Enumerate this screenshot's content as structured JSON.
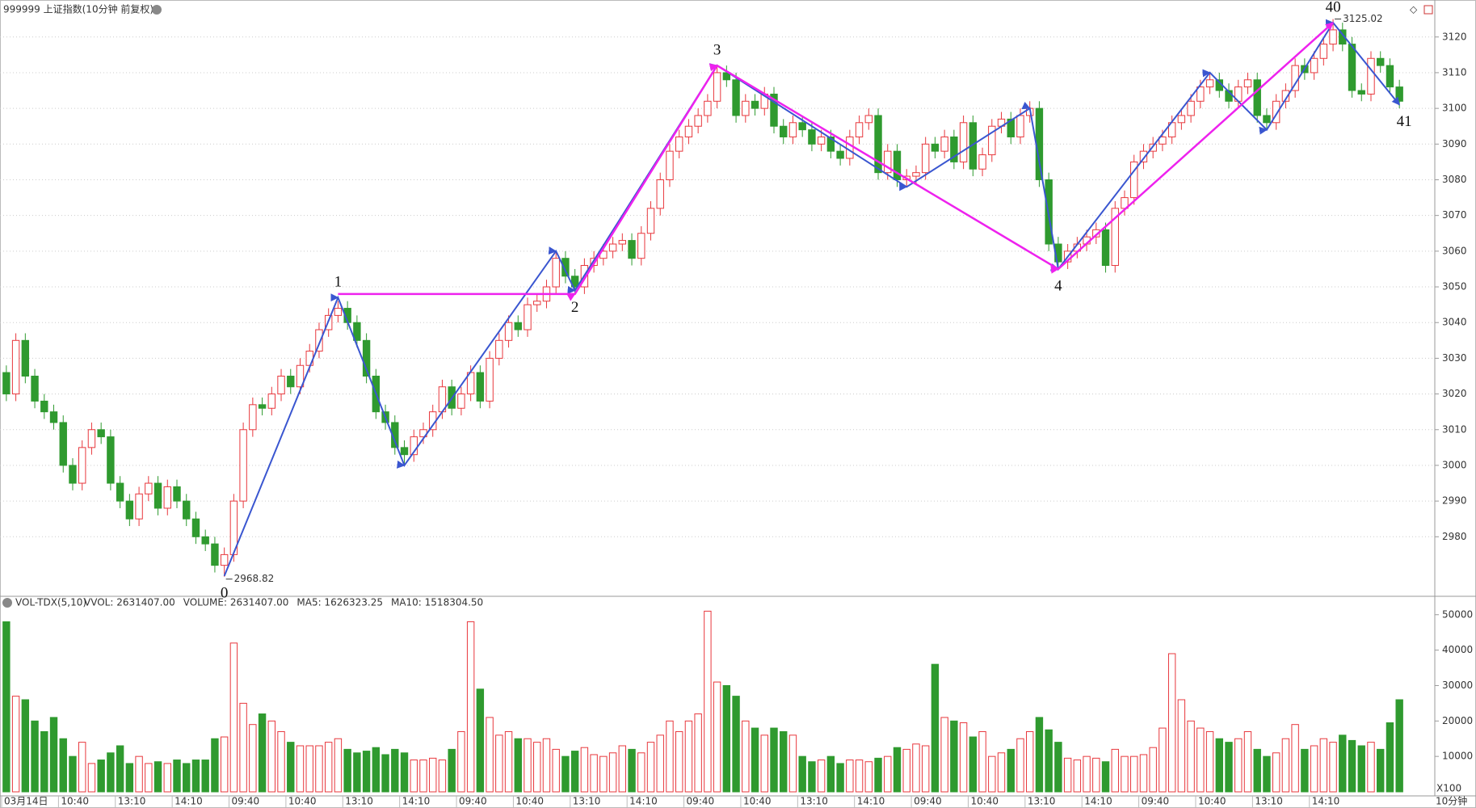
{
  "chart_data": [
    {
      "type": "candlestick",
      "title": "999999 上证指数(10分钟 前复权)",
      "x_unit": "10分钟",
      "up_color": "#e8383d",
      "down_color": "#2f9a2f",
      "categories": [
        "03月14日",
        null,
        null,
        null,
        null,
        null,
        "10:40",
        null,
        null,
        null,
        null,
        null,
        "13:10",
        null,
        null,
        null,
        null,
        null,
        "14:10",
        null,
        null,
        null,
        null,
        null,
        "09:40",
        null,
        null,
        null,
        null,
        null,
        "10:40",
        null,
        null,
        null,
        null,
        null,
        "13:10",
        null,
        null,
        null,
        null,
        null,
        "14:10",
        null,
        null,
        null,
        null,
        null,
        "09:40",
        null,
        null,
        null,
        null,
        null,
        "10:40",
        null,
        null,
        null,
        null,
        null,
        "13:10",
        null,
        null,
        null,
        null,
        null,
        "14:10",
        null,
        null,
        null,
        null,
        null,
        "09:40",
        null,
        null,
        null,
        null,
        null,
        "10:40",
        null,
        null,
        null,
        null,
        null,
        "13:10",
        null,
        null,
        null,
        null,
        null,
        "14:10",
        null,
        null,
        null,
        null,
        null,
        "09:40",
        null,
        null,
        null,
        null,
        null,
        "10:40",
        null,
        null,
        null,
        null,
        null,
        "13:10",
        null,
        null,
        null,
        null,
        null,
        "14:10",
        null,
        null,
        null,
        null,
        null,
        "09:40",
        null,
        null,
        null,
        null,
        null,
        "10:40",
        null,
        null,
        null,
        null,
        null,
        "13:10",
        null,
        null,
        null,
        null,
        null,
        "14:10",
        null,
        null,
        null,
        null,
        null,
        null,
        null,
        null,
        null
      ],
      "open": [
        3026,
        3020,
        3035,
        3025,
        3018,
        3015,
        3012,
        3000,
        2995,
        3005,
        3010,
        3008,
        2995,
        2990,
        2985,
        2992,
        2995,
        2988,
        2994,
        2990,
        2985,
        2980,
        2978,
        2972,
        2975,
        2990,
        3010,
        3017,
        3016,
        3020,
        3025,
        3022,
        3028,
        3032,
        3038,
        3042,
        3044,
        3040,
        3035,
        3025,
        3015,
        3012,
        3005,
        3003,
        3008,
        3010,
        3015,
        3022,
        3016,
        3020,
        3026,
        3018,
        3030,
        3035,
        3040,
        3038,
        3045,
        3046,
        3050,
        3058,
        3053,
        3050,
        3056,
        3058,
        3060,
        3062,
        3063,
        3058,
        3065,
        3072,
        3080,
        3088,
        3092,
        3095,
        3098,
        3102,
        3110,
        3108,
        3098,
        3102,
        3100,
        3104,
        3095,
        3092,
        3096,
        3094,
        3090,
        3092,
        3088,
        3086,
        3092,
        3096,
        3098,
        3082,
        3088,
        3080,
        3081,
        3082,
        3090,
        3088,
        3092,
        3085,
        3096,
        3083,
        3087,
        3095,
        3097,
        3092,
        3098,
        3100,
        3080,
        3062,
        3057,
        3060,
        3062,
        3064,
        3066,
        3056,
        3072,
        3075,
        3085,
        3088,
        3090,
        3092,
        3096,
        3098,
        3102,
        3106,
        3108,
        3105,
        3102,
        3106,
        3108,
        3098,
        3096,
        3102,
        3105,
        3112,
        3110,
        3114,
        3118,
        3122,
        3118,
        3105,
        3104,
        3114,
        3112,
        3106
      ],
      "high": [
        3028,
        3037,
        3037,
        3027,
        3020,
        3017,
        3014,
        3002,
        3007,
        3012,
        3012,
        3010,
        2997,
        2992,
        2994,
        2997,
        2997,
        2996,
        2996,
        2992,
        2987,
        2982,
        2980,
        2977,
        2992,
        3012,
        3019,
        3019,
        3022,
        3027,
        3027,
        3030,
        3034,
        3040,
        3044,
        3046,
        3046,
        3042,
        3037,
        3027,
        3017,
        3014,
        3007,
        3010,
        3012,
        3017,
        3024,
        3024,
        3022,
        3028,
        3028,
        3032,
        3037,
        3042,
        3042,
        3047,
        3048,
        3052,
        3060,
        3060,
        3055,
        3058,
        3060,
        3062,
        3064,
        3065,
        3065,
        3067,
        3074,
        3082,
        3090,
        3094,
        3097,
        3100,
        3104,
        3112,
        3112,
        3110,
        3104,
        3104,
        3106,
        3106,
        3097,
        3098,
        3098,
        3096,
        3094,
        3094,
        3090,
        3094,
        3098,
        3100,
        3100,
        3090,
        3090,
        3083,
        3084,
        3092,
        3092,
        3094,
        3094,
        3098,
        3098,
        3089,
        3097,
        3099,
        3099,
        3100,
        3102,
        3102,
        3082,
        3064,
        3062,
        3064,
        3066,
        3068,
        3068,
        3074,
        3077,
        3087,
        3090,
        3092,
        3094,
        3098,
        3100,
        3104,
        3108,
        3110,
        3110,
        3107,
        3108,
        3110,
        3110,
        3100,
        3104,
        3107,
        3114,
        3114,
        3116,
        3120,
        3125.02,
        3124,
        3120,
        3107,
        3116,
        3116,
        3114,
        3108
      ],
      "low": [
        3018,
        3018,
        3023,
        3016,
        3013,
        3010,
        2998,
        2993,
        2993,
        3003,
        3006,
        2993,
        2988,
        2983,
        2983,
        2990,
        2986,
        2986,
        2988,
        2983,
        2978,
        2976,
        2970,
        2968.82,
        2973,
        2988,
        3008,
        3014,
        3014,
        3018,
        3020,
        3020,
        3026,
        3030,
        3036,
        3040,
        3038,
        3033,
        3023,
        3013,
        3010,
        3003,
        3000,
        3001,
        3006,
        3008,
        3013,
        3014,
        3014,
        3018,
        3016,
        3016,
        3028,
        3033,
        3036,
        3036,
        3043,
        3044,
        3048,
        3051,
        3048,
        3048,
        3054,
        3056,
        3058,
        3060,
        3056,
        3056,
        3063,
        3070,
        3078,
        3086,
        3090,
        3093,
        3096,
        3100,
        3106,
        3096,
        3096,
        3098,
        3098,
        3093,
        3090,
        3090,
        3092,
        3088,
        3088,
        3086,
        3084,
        3084,
        3090,
        3094,
        3080,
        3080,
        3078,
        3078,
        3079,
        3080,
        3086,
        3086,
        3083,
        3083,
        3081,
        3081,
        3085,
        3093,
        3090,
        3090,
        3096,
        3078,
        3060,
        3055,
        3055,
        3058,
        3060,
        3062,
        3054,
        3054,
        3070,
        3073,
        3083,
        3086,
        3088,
        3090,
        3094,
        3096,
        3100,
        3104,
        3103,
        3100,
        3100,
        3104,
        3096,
        3094,
        3094,
        3100,
        3103,
        3108,
        3108,
        3112,
        3116,
        3116,
        3103,
        3102,
        3102,
        3110,
        3104,
        3100
      ],
      "close": [
        3020,
        3035,
        3025,
        3018,
        3015,
        3012,
        3000,
        2995,
        3005,
        3010,
        3008,
        2995,
        2990,
        2985,
        2992,
        2995,
        2988,
        2994,
        2990,
        2985,
        2980,
        2978,
        2972,
        2975,
        2990,
        3010,
        3017,
        3016,
        3020,
        3025,
        3022,
        3028,
        3032,
        3038,
        3042,
        3044,
        3040,
        3035,
        3025,
        3015,
        3012,
        3005,
        3003,
        3008,
        3010,
        3015,
        3022,
        3016,
        3020,
        3026,
        3018,
        3030,
        3035,
        3040,
        3038,
        3045,
        3046,
        3050,
        3058,
        3053,
        3050,
        3056,
        3058,
        3060,
        3062,
        3063,
        3058,
        3065,
        3072,
        3080,
        3088,
        3092,
        3095,
        3098,
        3102,
        3110,
        3108,
        3098,
        3102,
        3100,
        3104,
        3095,
        3092,
        3096,
        3094,
        3090,
        3092,
        3088,
        3086,
        3092,
        3096,
        3098,
        3082,
        3088,
        3080,
        3081,
        3082,
        3090,
        3088,
        3092,
        3085,
        3096,
        3083,
        3087,
        3095,
        3097,
        3092,
        3098,
        3100,
        3080,
        3062,
        3057,
        3060,
        3062,
        3064,
        3066,
        3056,
        3072,
        3075,
        3085,
        3088,
        3090,
        3092,
        3096,
        3098,
        3102,
        3106,
        3108,
        3105,
        3102,
        3106,
        3108,
        3098,
        3096,
        3102,
        3105,
        3112,
        3110,
        3114,
        3118,
        3122,
        3118,
        3105,
        3104,
        3114,
        3112,
        3106,
        3102
      ],
      "ylim": [
        2964,
        3129
      ],
      "yticks": [
        2980,
        2990,
        3000,
        3010,
        3020,
        3030,
        3040,
        3050,
        3060,
        3070,
        3080,
        3090,
        3100,
        3110,
        3120
      ],
      "grid": true,
      "annotations": [
        {
          "value": 2968.82,
          "label": "2968.82"
        },
        {
          "value": 3125.02,
          "label": "3125.02"
        }
      ],
      "zigzag": [
        {
          "name": "blue",
          "color": "#3a56d0",
          "x": [
            23,
            35,
            42,
            58,
            60,
            75,
            95,
            108,
            111,
            127,
            133,
            140,
            147
          ],
          "values": [
            2969,
            3047,
            3000,
            3060,
            3049,
            3112,
            3078,
            3100,
            3055,
            3110,
            3094,
            3124,
            3101
          ],
          "labels": [
            "0",
            "1",
            null,
            null,
            "2",
            "3",
            null,
            null,
            "4",
            null,
            null,
            "40",
            "41"
          ]
        },
        {
          "name": "magenta",
          "color": "#ee22ee",
          "x": [
            35,
            60,
            75,
            111,
            140
          ],
          "values": [
            3048,
            3048,
            3112,
            3055,
            3124
          ]
        }
      ]
    },
    {
      "type": "bar",
      "title": "VOL-TDX(5,10)",
      "legend": [
        "VVOL: 2631407.00",
        "VOLUME: 2631407.00",
        "MA5: 1626323.25",
        "MA10: 1518304.50"
      ],
      "legend_colors": [
        "#333333",
        "#1e88d0",
        "#1e88d0",
        "#a0209a"
      ],
      "unit_label": "X100",
      "values": [
        48000,
        27000,
        26000,
        20000,
        17000,
        21000,
        15000,
        10000,
        14000,
        8000,
        9000,
        11000,
        13000,
        8000,
        10000,
        8000,
        8500,
        8000,
        9000,
        8000,
        9000,
        9000,
        15000,
        15500,
        42000,
        25000,
        19000,
        22000,
        20000,
        17000,
        14000,
        13000,
        13000,
        13000,
        14000,
        15000,
        12000,
        11000,
        11500,
        12500,
        10500,
        12000,
        11000,
        9000,
        9000,
        9500,
        9000,
        12000,
        17000,
        48000,
        29000,
        21000,
        16000,
        17000,
        15000,
        15000,
        14000,
        15000,
        12000,
        10000,
        11500,
        12500,
        10500,
        10000,
        11000,
        13000,
        12000,
        11000,
        14000,
        16000,
        20000,
        17000,
        20000,
        22000,
        51000,
        31000,
        30000,
        27000,
        20000,
        18000,
        16000,
        18000,
        17000,
        16000,
        10000,
        8500,
        9000,
        10000,
        8000,
        9000,
        9000,
        8500,
        9500,
        10000,
        12500,
        12000,
        13500,
        13000,
        36000,
        21000,
        20000,
        19500,
        15500,
        17000,
        10000,
        11000,
        12000,
        15000,
        17000,
        21000,
        17500,
        14000,
        9500,
        9000,
        10000,
        9500,
        8500,
        12000,
        10000,
        10000,
        10500,
        12500,
        18000,
        39000,
        26000,
        20000,
        18000,
        17000,
        15000,
        14000,
        15000,
        17000,
        12000,
        10000,
        11000,
        15000,
        19000,
        12000,
        13000,
        15000,
        14000,
        16000,
        14500,
        13000,
        14000,
        12000,
        19500,
        26000
      ],
      "ylim": [
        0,
        52000
      ],
      "yticks": [
        10000,
        20000,
        30000,
        40000,
        50000
      ]
    }
  ]
}
